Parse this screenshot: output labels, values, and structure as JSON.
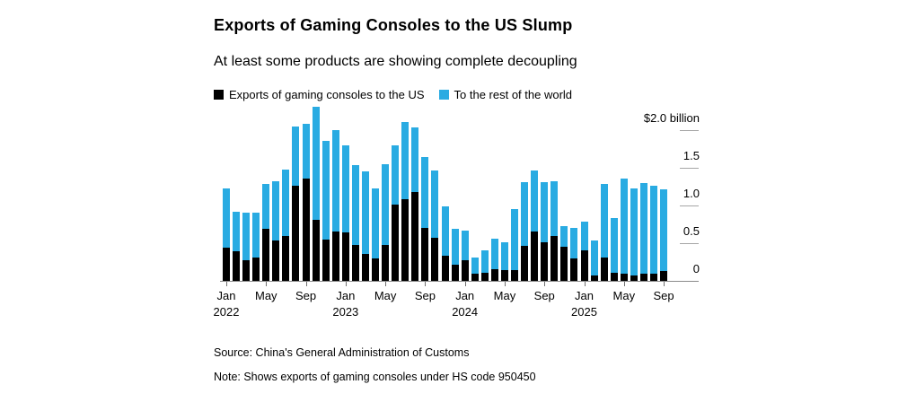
{
  "header": {
    "title": "Exports of Gaming Consoles to the US Slump",
    "subtitle": "At least some products are showing complete decoupling"
  },
  "legend": {
    "items": [
      {
        "name": "us",
        "label": "Exports of gaming consoles to the US",
        "color": "#000000"
      },
      {
        "name": "row",
        "label": "To the rest of the world",
        "color": "#29abe2"
      }
    ]
  },
  "chart_data": {
    "type": "bar",
    "stacked": true,
    "unit": "USD billion per month",
    "x": [
      "Jan 2022",
      "Feb 2022",
      "Mar 2022",
      "Apr 2022",
      "May 2022",
      "Jun 2022",
      "Jul 2022",
      "Aug 2022",
      "Sep 2022",
      "Oct 2022",
      "Nov 2022",
      "Dec 2022",
      "Jan 2023",
      "Feb 2023",
      "Mar 2023",
      "Apr 2023",
      "May 2023",
      "Jun 2023",
      "Jul 2023",
      "Aug 2023",
      "Sep 2023",
      "Oct 2023",
      "Nov 2023",
      "Dec 2023",
      "Jan 2024",
      "Feb 2024",
      "Mar 2024",
      "Apr 2024",
      "May 2024",
      "Jun 2024",
      "Jul 2024",
      "Aug 2024",
      "Sep 2024",
      "Oct 2024",
      "Nov 2024",
      "Dec 2024",
      "Jan 2025",
      "Feb 2025",
      "Mar 2025",
      "Apr 2025",
      "May 2025",
      "Jun 2025",
      "Jul 2025",
      "Aug 2025",
      "Sep 2025"
    ],
    "series": [
      {
        "name": "Exports of gaming consoles to the US",
        "color": "#000000",
        "values": [
          0.44,
          0.39,
          0.27,
          0.31,
          0.69,
          0.54,
          0.6,
          1.26,
          1.36,
          0.81,
          0.55,
          0.66,
          0.64,
          0.48,
          0.36,
          0.3,
          0.48,
          1.01,
          1.08,
          1.18,
          0.7,
          0.57,
          0.33,
          0.21,
          0.27,
          0.09,
          0.11,
          0.15,
          0.14,
          0.14,
          0.47,
          0.65,
          0.51,
          0.59,
          0.45,
          0.3,
          0.4,
          0.07,
          0.31,
          0.11,
          0.09,
          0.07,
          0.1,
          0.09,
          0.13
        ]
      },
      {
        "name": "To the rest of the world",
        "color": "#29abe2",
        "values": [
          0.78,
          0.52,
          0.63,
          0.6,
          0.6,
          0.79,
          0.88,
          0.79,
          0.73,
          1.5,
          1.31,
          1.34,
          1.16,
          1.06,
          1.1,
          0.93,
          1.07,
          0.78,
          1.02,
          0.86,
          0.94,
          0.89,
          0.66,
          0.48,
          0.39,
          0.22,
          0.3,
          0.4,
          0.37,
          0.81,
          0.84,
          0.81,
          0.8,
          0.73,
          0.27,
          0.41,
          0.38,
          0.46,
          0.98,
          0.73,
          1.26,
          1.15,
          1.2,
          1.17,
          1.08
        ]
      }
    ],
    "y_axis": {
      "position": "right",
      "ylim": [
        0,
        2.4
      ],
      "ticks": [
        {
          "value": 2.0,
          "label": "$2.0 billion"
        },
        {
          "value": 1.5,
          "label": "1.5"
        },
        {
          "value": 1.0,
          "label": "1.0"
        },
        {
          "value": 0.5,
          "label": "0.5"
        },
        {
          "value": 0.0,
          "label": "0"
        }
      ]
    },
    "x_axis": {
      "ticks": [
        {
          "index": 0,
          "label": "Jan",
          "year": "2022"
        },
        {
          "index": 4,
          "label": "May"
        },
        {
          "index": 8,
          "label": "Sep"
        },
        {
          "index": 12,
          "label": "Jan",
          "year": "2023"
        },
        {
          "index": 16,
          "label": "May"
        },
        {
          "index": 20,
          "label": "Sep"
        },
        {
          "index": 24,
          "label": "Jan",
          "year": "2024"
        },
        {
          "index": 28,
          "label": "May"
        },
        {
          "index": 32,
          "label": "Sep"
        },
        {
          "index": 36,
          "label": "Jan",
          "year": "2025"
        },
        {
          "index": 40,
          "label": "May"
        },
        {
          "index": 44,
          "label": "Sep"
        }
      ]
    },
    "grid": false,
    "legend_position": "top"
  },
  "footer": {
    "source": "Source: China's General Administration of Customs",
    "note": "Note: Shows exports of gaming consoles under HS code 950450"
  }
}
